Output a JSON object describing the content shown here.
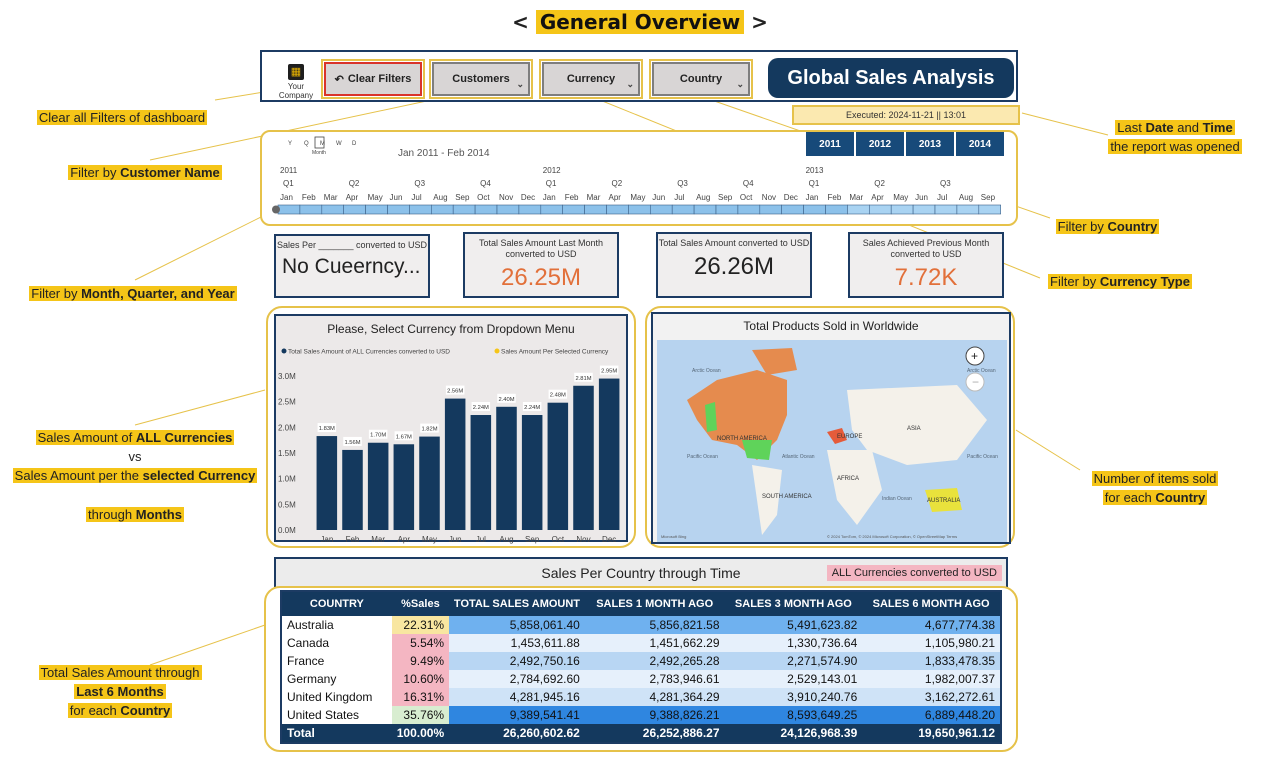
{
  "title": {
    "prefix": "<",
    "label": "General Overview",
    "suffix": ">"
  },
  "header": {
    "logo_text": "Your Company",
    "clear_filters": "Clear Filters",
    "filters": [
      "Customers",
      "Currency",
      "Country"
    ],
    "report_title": "Global Sales Analysis",
    "executed": "Executed: 2024-11-21  ||  13:01"
  },
  "timeline": {
    "range": "Jan 2011 - Feb 2014",
    "granularity": [
      "Y",
      "Q",
      "M",
      "W",
      "D"
    ],
    "granularity_label": "Month",
    "years": [
      "2011",
      "2012",
      "2013"
    ],
    "quarters": [
      "Q1",
      "Q2",
      "Q3",
      "Q4",
      "Q1",
      "Q2",
      "Q3",
      "Q4",
      "Q1",
      "Q2",
      "Q3"
    ],
    "months": [
      "Jan",
      "Feb",
      "Mar",
      "Apr",
      "May",
      "Jun",
      "Jul",
      "Aug",
      "Sep",
      "Oct",
      "Nov",
      "Dec",
      "Jan",
      "Feb",
      "Mar",
      "Apr",
      "May",
      "Jun",
      "Jul",
      "Aug",
      "Sep",
      "Oct",
      "Nov",
      "Dec",
      "Jan",
      "Feb",
      "Mar",
      "Apr",
      "May",
      "Jun",
      "Jul",
      "Aug",
      "Sep"
    ],
    "year_buttons": [
      "2011",
      "2012",
      "2013",
      "2014"
    ]
  },
  "kpis": [
    {
      "label": "Sales Per _______ converted to USD",
      "value": "No Cueerncy...",
      "color": "#222222"
    },
    {
      "label": "Total Sales Amount Last Month converted to USD",
      "value": "26.25M",
      "color": "#e2703a"
    },
    {
      "label": "Total Sales Amount converted to USD",
      "value": "26.26M",
      "color": "#222222"
    },
    {
      "label": "Sales Achieved Previous Month converted to USD",
      "value": "7.72K",
      "color": "#e2703a"
    }
  ],
  "bar_panel": {
    "title": "Please, Select Currency from Dropdown Menu"
  },
  "chart_data": {
    "type": "bar",
    "legend": [
      "Total Sales Amount of ALL Currencies converted to USD",
      "Sales Amount Per Selected Currency"
    ],
    "legend_colors": [
      "#14395e",
      "#f5c518"
    ],
    "categories": [
      "Jan",
      "Feb",
      "Mar",
      "Apr",
      "May",
      "Jun",
      "Jul",
      "Aug",
      "Sep",
      "Oct",
      "Nov",
      "Dec"
    ],
    "values": [
      1.83,
      1.56,
      1.7,
      1.67,
      1.82,
      2.56,
      2.24,
      2.4,
      2.24,
      2.48,
      2.81,
      2.95
    ],
    "labels": [
      "1.83M",
      "1.56M",
      "1.70M",
      "1.67M",
      "1.82M",
      "2.56M",
      "2.24M",
      "2.40M",
      "2.24M",
      "2.48M",
      "2.81M",
      "2.95M"
    ],
    "yticks": [
      "0.0M",
      "0.5M",
      "1.0M",
      "1.5M",
      "2.0M",
      "2.5M",
      "3.0M"
    ],
    "ylim": [
      0,
      3.0
    ],
    "bar_color": "#14395e"
  },
  "map_panel": {
    "title": "Total Products Sold in Worldwide",
    "labels": [
      "NORTH AMERICA",
      "EUROPE",
      "ASIA",
      "AFRICA",
      "SOUTH AMERICA",
      "AUSTRALIA",
      "Arctic Ocean",
      "Arctic Ocean",
      "Pacific Ocean",
      "Atlantic Ocean",
      "Indian Ocean",
      "Pacific Ocean"
    ],
    "footer_left": "Microsoft Bing",
    "footer_right": "© 2024 TomTom, © 2024 Microsoft Corporation, © OpenStreetMap  Terms"
  },
  "table": {
    "title": "Sales Per Country through Time",
    "badge": "ALL Currencies converted to USD",
    "columns": [
      "COUNTRY",
      "%Sales",
      "TOTAL SALES AMOUNT",
      "SALES 1 MONTH AGO",
      "SALES 3 MONTH AGO",
      "SALES 6 MONTH AGO"
    ],
    "rows": [
      [
        "Australia",
        "22.31%",
        "5,858,061.40",
        "5,856,821.58",
        "5,491,623.82",
        "4,677,774.38"
      ],
      [
        "Canada",
        "5.54%",
        "1,453,611.88",
        "1,451,662.29",
        "1,330,736.64",
        "1,105,980.21"
      ],
      [
        "France",
        "9.49%",
        "2,492,750.16",
        "2,492,265.28",
        "2,271,574.90",
        "1,833,478.35"
      ],
      [
        "Germany",
        "10.60%",
        "2,784,692.60",
        "2,783,946.61",
        "2,529,143.01",
        "1,982,007.37"
      ],
      [
        "United Kingdom",
        "16.31%",
        "4,281,945.16",
        "4,281,364.29",
        "3,910,240.76",
        "3,162,272.61"
      ],
      [
        "United States",
        "35.76%",
        "9,389,541.41",
        "9,388,826.21",
        "8,593,649.25",
        "6,889,448.20"
      ]
    ],
    "total": [
      "Total",
      "100.00%",
      "26,260,602.62",
      "26,252,886.27",
      "24,126,968.39",
      "19,650,961.12"
    ]
  },
  "callouts": {
    "clear": "Clear all Filters of dashboard",
    "customer_pre": "Filter by ",
    "customer_b": "Customer Name",
    "time_pre": "Filter by ",
    "time_b": "Month, Quarter, and Year",
    "sales_l1_pre": "Sales Amount  of ",
    "sales_l1_b": "ALL Currencies",
    "sales_vs": "vs",
    "sales_l2_pre": "Sales Amount  per the ",
    "sales_l2_b": "selected Currency",
    "sales_l3_pre": "through ",
    "sales_l3_b": "Months",
    "total_l1": "Total Sales Amount  through",
    "total_l2": "Last 6 Months",
    "total_l3_pre": "for each ",
    "total_l3_b": "Country",
    "last_l1_pre": "Last ",
    "last_l1_b1": "Date",
    "last_l1_mid": " and ",
    "last_l1_b2": "Time",
    "last_l2": "the report  was opened",
    "country_pre": "Filter by ",
    "country_b": "Country",
    "currency_pre": "Filter by ",
    "currency_b": "Currency Type",
    "items_l1": "Number  of items sold",
    "items_l2_pre": "for each ",
    "items_l2_b": "Country"
  }
}
